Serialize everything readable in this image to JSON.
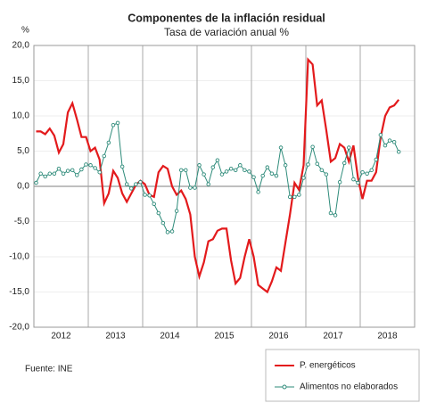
{
  "chart_data": {
    "type": "line",
    "title": "Componentes de la inflación residual",
    "subtitle": "Tasa de variación anual %",
    "y_unit": "%",
    "source": "Fuente: INE",
    "groups": [
      "2012",
      "2013",
      "2014",
      "2015",
      "2016",
      "2017",
      "2018"
    ],
    "ylim": [
      -20,
      20
    ],
    "yticks": [
      {
        "value": 20,
        "label": "20,0"
      },
      {
        "value": 15,
        "label": "15,0"
      },
      {
        "value": 10,
        "label": "10,0"
      },
      {
        "value": 5,
        "label": "5,0"
      },
      {
        "value": 0,
        "label": "0,0"
      },
      {
        "value": -5,
        "label": "-5,0"
      },
      {
        "value": -10,
        "label": "-10,0"
      },
      {
        "value": -15,
        "label": "-15,0"
      },
      {
        "value": -20,
        "label": "-20,0"
      }
    ],
    "grid": true,
    "legend": "lower right",
    "series": [
      {
        "name": "P. energéticos",
        "color": "#e31a1c",
        "marker": false,
        "values": [
          7.8,
          7.8,
          7.4,
          8.2,
          7.2,
          4.8,
          6.0,
          10.5,
          11.8,
          9.5,
          7.0,
          7.0,
          5.0,
          5.5,
          3.8,
          -2.4,
          -1.0,
          2.2,
          1.2,
          -1.0,
          -2.2,
          -1.0,
          0.2,
          0.8,
          0.3,
          -1.2,
          -1.5,
          2.0,
          2.9,
          2.5,
          0,
          -1.2,
          -0.6,
          -1.8,
          -4.0,
          -10.0,
          -12.8,
          -10.8,
          -7.8,
          -7.5,
          -6.3,
          -6.0,
          -6.0,
          -10.5,
          -13.8,
          -13.0,
          -10.0,
          -7.5,
          -10.0,
          -14.0,
          -14.5,
          -15.0,
          -13.5,
          -11.5,
          -12.0,
          -8.0,
          -4.0,
          0.5,
          -0.5,
          3.0,
          18.0,
          17.3,
          11.5,
          12.2,
          8.0,
          3.5,
          4.0,
          6.0,
          5.5,
          3.5,
          5.8,
          1.2,
          -1.8,
          0.8,
          0.8,
          2.0,
          7.0,
          10.0,
          11.2,
          11.5,
          12.3
        ]
      },
      {
        "name": "Alimentos no elaborados",
        "color": "#2e8b7a",
        "marker": true,
        "values": [
          0.5,
          1.8,
          1.4,
          1.8,
          1.8,
          2.5,
          1.8,
          2.2,
          2.3,
          1.6,
          2.4,
          3.1,
          3.0,
          2.6,
          2.0,
          4.3,
          6.2,
          8.7,
          9.0,
          2.8,
          0.3,
          -0.3,
          0.3,
          0.6,
          -1.2,
          -1.3,
          -2.5,
          -3.8,
          -5.2,
          -6.5,
          -6.4,
          -3.5,
          2.3,
          2.3,
          -0.2,
          -0.2,
          3.0,
          1.7,
          0.3,
          2.7,
          3.7,
          1.7,
          2.1,
          2.5,
          2.3,
          3.0,
          2.3,
          2.1,
          1.3,
          -0.8,
          1.5,
          2.7,
          1.8,
          1.5,
          5.5,
          3.0,
          -1.5,
          -1.5,
          -1.2,
          1.2,
          3.1,
          5.6,
          3.2,
          2.3,
          1.7,
          -3.8,
          -4.1,
          0.6,
          3.3,
          5.5,
          1.0,
          0.5,
          2.0,
          1.8,
          2.3,
          3.8,
          7.3,
          5.8,
          6.5,
          6.3,
          4.9
        ]
      }
    ]
  }
}
